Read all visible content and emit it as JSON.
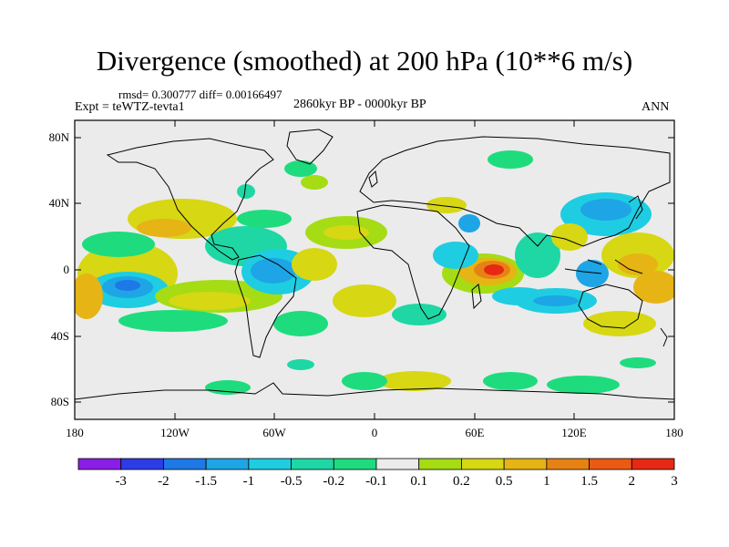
{
  "title": "Divergence (smoothed) at 200 hPa (10**6 m/s)",
  "stats": "rmsd= 0.300777 diff= 0.00166497",
  "left_label": "Expt = teWTZ-tevta1",
  "center_label": "2860kyr BP - 0000kyr BP",
  "right_label": "ANN",
  "lat_ticks": [
    "80N",
    "40N",
    "0",
    "40S",
    "80S"
  ],
  "lon_ticks": [
    "180",
    "120W",
    "60W",
    "0",
    "60E",
    "120E",
    "180"
  ],
  "colorbar": {
    "labels": [
      "-3",
      "-2",
      "-1.5",
      "-1",
      "-0.5",
      "-0.2",
      "-0.1",
      "0.1",
      "0.2",
      "0.5",
      "1",
      "1.5",
      "2",
      "3"
    ],
    "colors": [
      "#8a1de6",
      "#2d3ce6",
      "#1e78e6",
      "#1ea5e6",
      "#1ecde1",
      "#1ed7a5",
      "#1edc7d",
      "#ebebeb",
      "#a5dc14",
      "#d7d714",
      "#e6b414",
      "#e68214",
      "#eb5a14",
      "#e62814"
    ]
  },
  "colors": {
    "background_field": "#ebebeb",
    "coastline": "#000000"
  }
}
